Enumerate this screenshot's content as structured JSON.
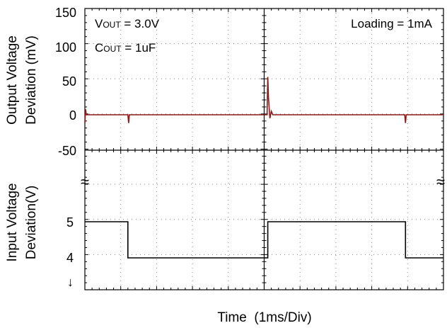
{
  "chart_data": [
    {
      "type": "line",
      "panel": "top",
      "ylabel_line1": "Output Voltage",
      "ylabel_line2": "Deviation (mV)",
      "ylim": [
        -50,
        150
      ],
      "yticks": [
        "150",
        "100",
        "50",
        "0",
        "-50"
      ],
      "ytick_values": [
        150,
        100,
        50,
        0,
        -50
      ],
      "annotations": {
        "vout_prefix": "V",
        "vout_sub": "OUT",
        "vout_suffix": " = 3.0V",
        "cout_prefix": "C",
        "cout_sub": "OUT",
        "cout_suffix": " = 1uF",
        "loading": "Loading = 1mA"
      },
      "series": [
        {
          "color": "#8b1a1a",
          "x": [
            0,
            0.01,
            0.02,
            0.6,
            0.61,
            0.62,
            2.54,
            2.55,
            2.56,
            2.58,
            2.6,
            2.62,
            4.46,
            4.47,
            4.48,
            5.0
          ],
          "y": [
            -12,
            8,
            0,
            0,
            -12,
            0,
            0,
            55,
            25,
            -5,
            5,
            0,
            0,
            -12,
            0,
            0
          ]
        }
      ]
    },
    {
      "type": "line",
      "panel": "bottom",
      "ylabel_line1": "Input Voltage",
      "ylabel_line2": "Deviation(V)",
      "yticks": [
        "5",
        "4"
      ],
      "ytick_values": [
        5,
        4
      ],
      "break_symbol": "≈",
      "arrow_symbol": "↓",
      "series": [
        {
          "color": "#000000",
          "x": [
            0,
            0.6,
            0.6,
            2.55,
            2.55,
            4.47,
            4.47,
            5.0
          ],
          "y": [
            5,
            5,
            4,
            4,
            5,
            5,
            4,
            4
          ]
        }
      ]
    }
  ],
  "xlabel": "Time  (1ms/Div)",
  "x_division_unit": "1ms/Div",
  "grid": true
}
